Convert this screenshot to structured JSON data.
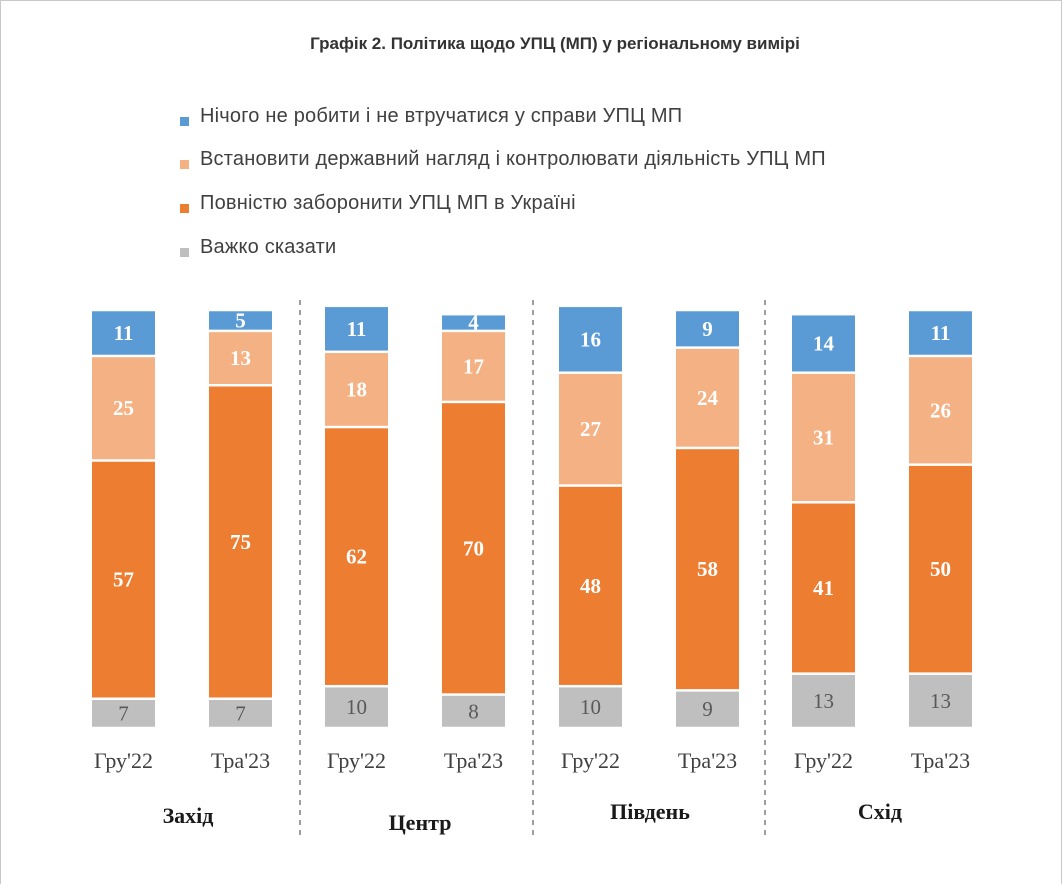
{
  "chart_data": {
    "type": "bar",
    "stacked": true,
    "title": "Графік 2. Політика щодо УПЦ (МП) у регіональному вимірі",
    "legend_position": "top",
    "series": [
      {
        "name": "Нічого не робити і не втручатися у справи УПЦ МП",
        "color": "#5b9bd5",
        "values": [
          11,
          5,
          11,
          4,
          16,
          9,
          14,
          11
        ]
      },
      {
        "name": "Встановити державний нагляд і контролювати діяльність УПЦ МП",
        "color": "#f4b183",
        "values": [
          25,
          13,
          18,
          17,
          27,
          24,
          31,
          26
        ]
      },
      {
        "name": "Повністю заборонити УПЦ МП в Україні",
        "color": "#ed7d31",
        "values": [
          57,
          75,
          62,
          70,
          48,
          58,
          41,
          50
        ]
      },
      {
        "name": "Важко сказати",
        "color": "#bfbfbf",
        "values": [
          7,
          7,
          10,
          8,
          10,
          9,
          13,
          13
        ]
      }
    ],
    "categories": [
      "Гру'22",
      "Тра'23",
      "Гру'22",
      "Тра'23",
      "Гру'22",
      "Тра'23",
      "Гру'22",
      "Тра'23"
    ],
    "groups": [
      "Захід",
      "Центр",
      "Південь",
      "Схід"
    ]
  }
}
